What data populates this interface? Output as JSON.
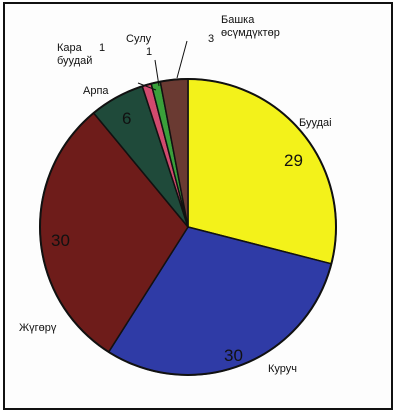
{
  "chart_data": {
    "type": "pie",
    "title": "",
    "slices": [
      {
        "label": "Буудай",
        "value": 29,
        "color": "#f3f21a"
      },
      {
        "label": "Куруч",
        "value": 30,
        "color": "#2f3ba6"
      },
      {
        "label": "Жүгөрү",
        "value": 30,
        "color": "#6e1c1a"
      },
      {
        "label": "Арпа",
        "value": 6,
        "color": "#1f4a3a"
      },
      {
        "label": "Кара буудай",
        "value": 1,
        "color": "#d14a6e"
      },
      {
        "label": "Сулу",
        "value": 1,
        "color": "#3aa03a"
      },
      {
        "label": "Башка өсүмдүктөр",
        "value": 3,
        "color": "#6a3a32"
      }
    ]
  },
  "labels": {
    "buudai": "Буудai",
    "kuruch": "Куруч",
    "jugoru": "Жүгөрү",
    "arpa": "Арпа",
    "kara_line1": "Кара",
    "kara_line2": "буудай",
    "kara_value": "1",
    "sulu": "Сулу",
    "sulu_value": "1",
    "bashka_line1": "Башка",
    "bashka_line2": "өсүмдүктөр",
    "bashka_value": "3",
    "v_buudai": "29",
    "v_kuruch": "30",
    "v_jugoru": "30",
    "v_arpa": "6"
  }
}
